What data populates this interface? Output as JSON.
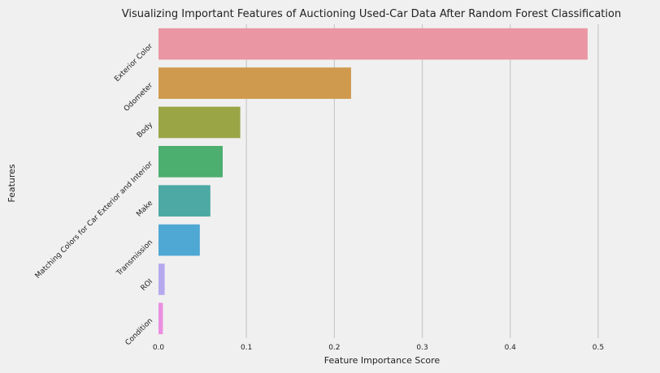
{
  "chart_data": {
    "type": "bar",
    "orientation": "horizontal",
    "title": "Visualizing Important Features of Auctioning Used-Car Data After Random Forest Classification",
    "xlabel": "Feature Importance Score",
    "ylabel": "Features",
    "xlim": [
      0,
      0.55
    ],
    "xticks": [
      "0.0",
      "0.1",
      "0.2",
      "0.3",
      "0.4",
      "0.5"
    ],
    "grid": "vertical",
    "categories": [
      "Exterior Color",
      "Odometer",
      "Body",
      "Matching Colors for Car Exterior and Interior",
      "Make",
      "Transmission",
      "ROI",
      "Condition"
    ],
    "values": [
      0.488,
      0.219,
      0.093,
      0.073,
      0.059,
      0.047,
      0.007,
      0.005
    ],
    "colors": [
      "#ea96a3",
      "#d09a4e",
      "#9aa546",
      "#4cae6f",
      "#4ca9a3",
      "#4fa8d4",
      "#b6a8ef",
      "#ea8fe0"
    ]
  }
}
